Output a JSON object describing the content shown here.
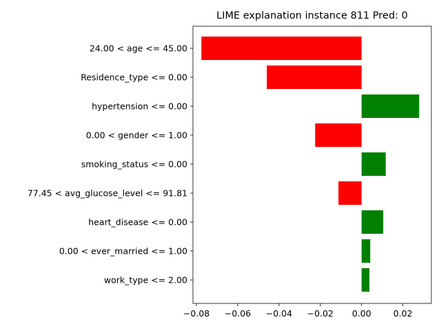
{
  "chart_data": {
    "type": "bar",
    "orientation": "horizontal",
    "title": "LIME explanation instance 811 Pred: 0",
    "xlabel": "",
    "ylabel": "",
    "xlim": [
      -0.0817,
      0.0338
    ],
    "xticks": [
      -0.08,
      -0.06,
      -0.04,
      -0.02,
      0.0,
      0.02
    ],
    "xtick_labels": [
      "−0.08",
      "−0.06",
      "−0.04",
      "−0.02",
      "0.00",
      "0.02"
    ],
    "categories": [
      "24.00 < age <= 45.00",
      "Residence_type <= 0.00",
      "hypertension <= 0.00",
      "0.00 < gender <= 1.00",
      "smoking_status <= 0.00",
      "77.45 < avg_glucose_level <= 91.81",
      "heart_disease <= 0.00",
      "0.00 < ever_married <= 1.00",
      "work_type <= 2.00"
    ],
    "values": [
      -0.0776,
      -0.0459,
      0.0279,
      -0.0225,
      0.0117,
      -0.0112,
      0.0105,
      0.0042,
      0.0038
    ],
    "colors": {
      "positive": "#008000",
      "negative": "#ff0000"
    },
    "grid": false,
    "legend": "none"
  }
}
